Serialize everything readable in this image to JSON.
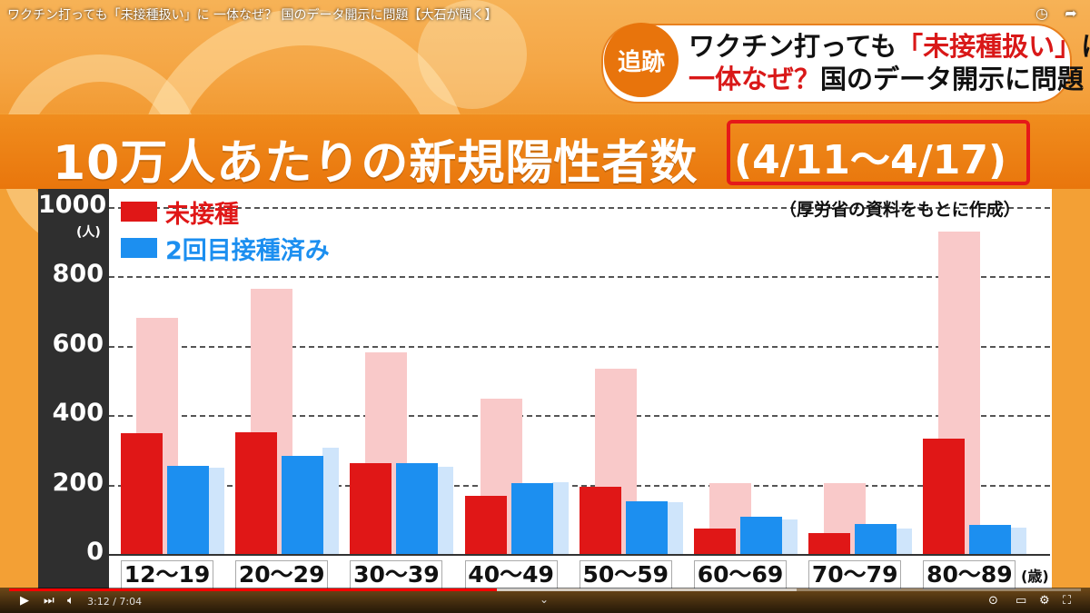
{
  "video": {
    "title": "ワクチン打っても「未接種扱い」に 一体なぜ？ 国のデータ開示に問題【大石が聞く】",
    "time": "3:12 / 7:04",
    "progress": 0.455
  },
  "headline": {
    "badge": "追跡",
    "line1_a": "ワクチン打っても",
    "line1_b": "「未接種扱い」",
    "line1_c": "に",
    "line2_a": "一体なぜ？",
    "line2_b": "国のデータ開示に問題"
  },
  "banner": {
    "title": "10万人あたりの新規陽性者数",
    "date_range": "(4/11〜4/17)"
  },
  "source_note": "（厚労省の資料をもとに作成）",
  "colors": {
    "unvaccinated": "#e01717",
    "vaccinated2": "#1c8ff0",
    "ghost_red": "#f9c9c9",
    "ghost_blue": "#cfe5fb"
  },
  "chart_data": {
    "type": "bar",
    "y_unit": "(人)",
    "x_unit": "(歳)",
    "ylim": [
      0,
      1000
    ],
    "yticks": [
      "1000",
      "800",
      "600",
      "400",
      "200",
      "0"
    ],
    "categories": [
      "12〜19",
      "20〜29",
      "30〜39",
      "40〜49",
      "50〜59",
      "60〜69",
      "70〜79",
      "80〜89"
    ],
    "series": [
      {
        "name": "未接種",
        "values": [
          347,
          352,
          262,
          168,
          195,
          72,
          60,
          332
        ]
      },
      {
        "name": "2回目接種済み",
        "values": [
          253,
          283,
          262,
          205,
          152,
          108,
          87,
          83
        ]
      }
    ],
    "background_series": {
      "unvaccinated": [
        680,
        765,
        582,
        448,
        533,
        205,
        205,
        930
      ],
      "vaccinated2": [
        250,
        305,
        252,
        207,
        148,
        100,
        74,
        76
      ]
    },
    "grid": true,
    "legend": "top-left"
  }
}
